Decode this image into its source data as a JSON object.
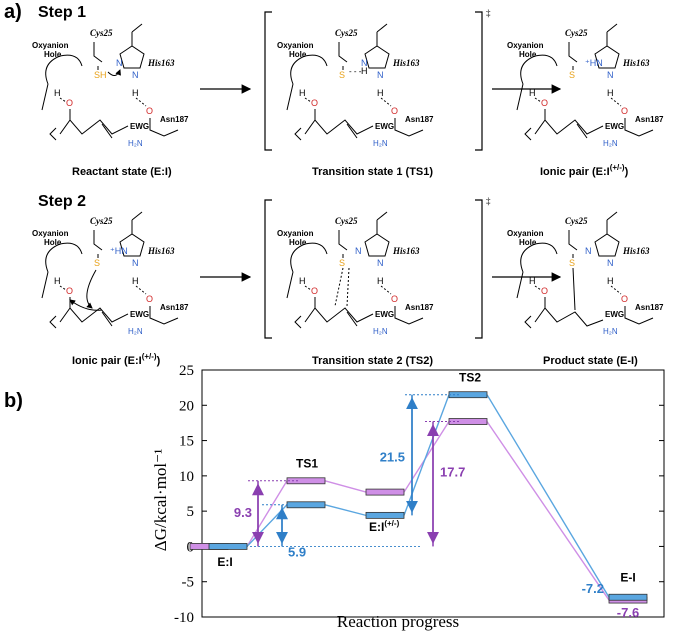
{
  "panel_a": {
    "label": "a)",
    "step1": {
      "title": "Step 1",
      "reactant": {
        "caption": "Reactant state (E:I)"
      },
      "ts1": {
        "caption": "Transition state 1 (TS1)",
        "dagger": "‡"
      },
      "ionic": {
        "caption_main": "Ionic pair (E:I",
        "caption_sup": "(+/-)",
        "caption_end": ")"
      }
    },
    "step2": {
      "title": "Step 2",
      "ionic": {
        "caption_main": "Ionic pair (E:I",
        "caption_sup": "(+/-)",
        "caption_end": ")"
      },
      "ts2": {
        "caption": "Transition state 2 (TS2)",
        "dagger": "‡"
      },
      "product": {
        "caption": "Product state (E-I)"
      }
    },
    "labels": {
      "oxyanion1": "Oxyanion",
      "oxyanion2": "Hole",
      "cys": "Cys25",
      "his": "His163",
      "asn": "Asn187",
      "ewg": "EWG",
      "sh": "SH",
      "s": "S",
      "n": "N",
      "h": "H",
      "o": "O",
      "h2n": "H₂N",
      "hn_plus": "⁺HN",
      "dots": "- - -"
    }
  },
  "panel_b": {
    "label": "b)"
  },
  "chart_data": {
    "type": "energy-profile",
    "ylabel": "ΔG/kcal·mol⁻¹",
    "xlabel": "Reaction progress",
    "ylim": [
      -10,
      25
    ],
    "yticks": [
      -10,
      -5,
      0,
      5,
      10,
      15,
      20,
      25
    ],
    "states": [
      "E:I",
      "TS1",
      "E:I(+/-)",
      "TS2",
      "E-I"
    ],
    "state_labels": {
      "ei": "E:I",
      "ts1": "TS1",
      "ion_main": "E:I",
      "ion_sup": "(+/-)",
      "ts2": "TS2",
      "product": "E-I"
    },
    "series": [
      {
        "color": "#b36fd0",
        "values": [
          0,
          9.3,
          7.7,
          17.7,
          -7.6
        ]
      },
      {
        "color": "#3a8fd0",
        "values": [
          0,
          5.9,
          4.4,
          21.5,
          -7.2
        ]
      }
    ],
    "annotations": {
      "ts1_purple": "9.3",
      "ts1_blue": "5.9",
      "ts2_blue": "21.5",
      "ts2_purple": "17.7",
      "prod_blue": "-7.2",
      "prod_purple": "-7.6"
    },
    "colors": {
      "purple": "#8a3fb0",
      "blue": "#2f7fc8",
      "purple_fill": "#cf8fe6",
      "blue_fill": "#5aa6e0"
    }
  }
}
